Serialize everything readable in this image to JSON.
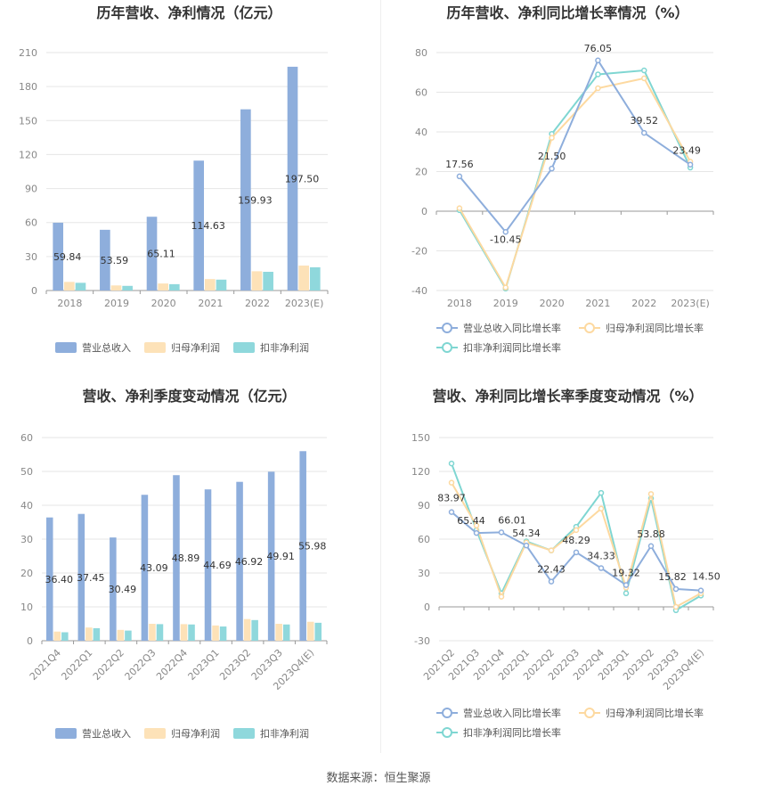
{
  "footer": "数据来源：恒生聚源",
  "colors": {
    "revenue": "#8eaedc",
    "profit": "#fde2b8",
    "deducted": "#8fd8dc",
    "revenue_line": "#8eaedc",
    "profit_line": "#fdd9a0",
    "deducted_line": "#7fd6d2"
  },
  "chart_data": [
    {
      "type": "bar",
      "title": "历年营收、净利情况（亿元）",
      "categories": [
        "2018",
        "2019",
        "2020",
        "2021",
        "2022",
        "2023(E)"
      ],
      "ylim": [
        0,
        210
      ],
      "yticks": [
        0,
        30,
        60,
        90,
        120,
        150,
        180,
        210
      ],
      "series": [
        {
          "name": "营业总收入",
          "values": [
            59.84,
            53.59,
            65.11,
            114.63,
            159.93,
            197.5
          ],
          "labels": [
            "59.84",
            "53.59",
            "65.11",
            "114.63",
            "159.93",
            "197.50"
          ]
        },
        {
          "name": "归母净利润",
          "values": [
            7.6,
            4.5,
            6.2,
            10.1,
            17.0,
            22.0
          ]
        },
        {
          "name": "扣非净利润",
          "values": [
            6.8,
            4.1,
            5.6,
            9.6,
            16.5,
            20.5
          ]
        }
      ],
      "grid": true,
      "legend": "bottom"
    },
    {
      "type": "line",
      "title": "历年营收、净利同比增长率情况（%）",
      "categories": [
        "2018",
        "2019",
        "2020",
        "2021",
        "2022",
        "2023(E)"
      ],
      "ylim": [
        -40,
        80
      ],
      "yticks": [
        -40,
        -20,
        0,
        20,
        40,
        60,
        80
      ],
      "series": [
        {
          "name": "营业总收入同比增长率",
          "values": [
            17.56,
            -10.45,
            21.5,
            76.05,
            39.52,
            23.49
          ],
          "labels": [
            "17.56",
            "-10.45",
            "21.50",
            "76.05",
            "39.52",
            "23.49"
          ]
        },
        {
          "name": "归母净利润同比增长率",
          "values": [
            1.5,
            -38.5,
            37,
            62,
            67,
            25
          ]
        },
        {
          "name": "扣非净利润同比增长率",
          "values": [
            0.5,
            -39,
            39,
            69,
            71,
            22
          ]
        }
      ],
      "grid": true,
      "legend": "bottom"
    },
    {
      "type": "bar",
      "title": "营收、净利季度变动情况（亿元）",
      "categories": [
        "2021Q4",
        "2022Q1",
        "2022Q2",
        "2022Q3",
        "2022Q4",
        "2023Q1",
        "2023Q2",
        "2023Q3",
        "2023Q4(E)"
      ],
      "ylim": [
        0,
        60
      ],
      "yticks": [
        0,
        10,
        20,
        30,
        40,
        50,
        60
      ],
      "series": [
        {
          "name": "营业总收入",
          "values": [
            36.4,
            37.45,
            30.49,
            43.09,
            48.89,
            44.69,
            46.92,
            49.91,
            55.98
          ],
          "labels": [
            "36.40",
            "37.45",
            "30.49",
            "43.09",
            "48.89",
            "44.69",
            "46.92",
            "49.91",
            "55.98"
          ]
        },
        {
          "name": "归母净利润",
          "values": [
            2.7,
            3.9,
            3.2,
            5.0,
            4.9,
            4.5,
            6.4,
            5.0,
            5.6
          ]
        },
        {
          "name": "扣非净利润",
          "values": [
            2.5,
            3.7,
            3.0,
            4.9,
            4.8,
            4.2,
            6.1,
            4.8,
            5.3
          ]
        }
      ],
      "grid": true,
      "legend": "bottom"
    },
    {
      "type": "line",
      "title": "营收、净利同比增长率季度变动情况（%）",
      "categories": [
        "2021Q2",
        "2021Q3",
        "2021Q4",
        "2022Q1",
        "2022Q2",
        "2022Q3",
        "2022Q4",
        "2023Q1",
        "2023Q2",
        "2023Q3",
        "2023Q4(E)"
      ],
      "ylim": [
        -30,
        150
      ],
      "yticks": [
        -30,
        0,
        30,
        60,
        90,
        120,
        150
      ],
      "series": [
        {
          "name": "营业总收入同比增长率",
          "values": [
            83.97,
            65.44,
            66.01,
            54.34,
            22.43,
            48.29,
            34.33,
            19.32,
            53.88,
            15.82,
            14.5
          ],
          "labels": [
            "83.97",
            "65.44",
            "66.01",
            "54.34",
            "22.43",
            "48.29",
            "34.33",
            "19.32",
            "53.88",
            "15.82",
            "14.50"
          ]
        },
        {
          "name": "归母净利润同比增长率",
          "values": [
            110,
            72,
            9,
            57,
            50,
            68,
            87,
            17,
            100,
            0,
            12
          ]
        },
        {
          "name": "扣非净利润同比增长率",
          "values": [
            127,
            68,
            12,
            58,
            50,
            71,
            101,
            12,
            96,
            -3,
            10
          ]
        }
      ],
      "grid": true,
      "legend": "bottom"
    }
  ]
}
